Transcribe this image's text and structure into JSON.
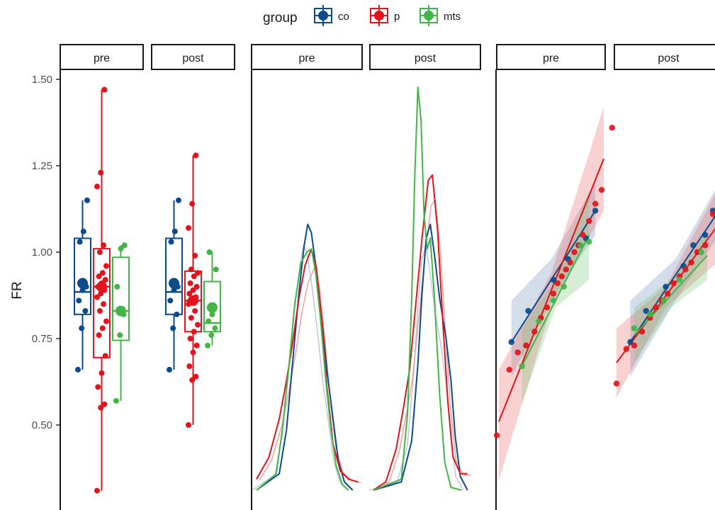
{
  "legend": {
    "title": "group",
    "items": [
      {
        "label": "co",
        "color": "#0b4a8b"
      },
      {
        "label": "p",
        "color": "#e3121b"
      },
      {
        "label": "mts",
        "color": "#43b447"
      }
    ]
  },
  "y_axis": {
    "title": "FR",
    "ticks": [
      "1.50",
      "1.25",
      "1.00",
      "0.75",
      "0.50"
    ]
  },
  "strips": {
    "panel1": [
      "pre",
      "post"
    ],
    "panel2": [
      "pre",
      "post"
    ],
    "panel3": [
      "pre",
      "post"
    ]
  },
  "chart_data": [
    {
      "type": "box",
      "ylabel": "FR",
      "ylim": [
        0.28,
        1.52
      ],
      "facets": [
        "pre",
        "post"
      ],
      "series": [
        {
          "name": "co",
          "color": "#0b4a8b",
          "pre": {
            "min": 0.66,
            "q1": 0.82,
            "median": 0.885,
            "q3": 1.04,
            "max": 1.15,
            "mean": 0.91,
            "points": [
              0.66,
              0.78,
              0.83,
              0.86,
              0.89,
              0.9,
              1.03,
              1.06,
              1.15
            ]
          },
          "post": {
            "min": 0.66,
            "q1": 0.82,
            "median": 0.885,
            "q3": 1.04,
            "max": 1.15,
            "mean": 0.91,
            "points": [
              0.66,
              0.78,
              0.82,
              0.86,
              0.89,
              0.9,
              1.03,
              1.06,
              1.15
            ]
          }
        },
        {
          "name": "p",
          "color": "#e3121b",
          "pre": {
            "min": 0.31,
            "q1": 0.695,
            "median": 0.9,
            "q3": 1.01,
            "max": 1.47,
            "mean": 0.9,
            "points": [
              0.31,
              0.55,
              0.56,
              0.61,
              0.65,
              0.7,
              0.76,
              0.78,
              0.8,
              0.83,
              0.85,
              0.87,
              0.88,
              0.89,
              0.9,
              0.91,
              0.92,
              0.93,
              0.94,
              0.96,
              1.0,
              1.02,
              1.19,
              1.23,
              1.47
            ]
          },
          "post": {
            "min": 0.5,
            "q1": 0.77,
            "median": 0.86,
            "q3": 0.945,
            "max": 1.28,
            "mean": 0.86,
            "points": [
              0.5,
              0.63,
              0.64,
              0.67,
              0.71,
              0.73,
              0.75,
              0.77,
              0.79,
              0.81,
              0.83,
              0.85,
              0.86,
              0.87,
              0.88,
              0.89,
              0.9,
              0.91,
              0.93,
              0.94,
              0.95,
              0.99,
              1.07,
              1.14,
              1.28
            ]
          }
        },
        {
          "name": "mts",
          "color": "#43b447",
          "pre": {
            "min": 0.57,
            "q1": 0.745,
            "median": 0.83,
            "q3": 0.985,
            "max": 1.02,
            "mean": 0.83,
            "points": [
              0.57,
              0.76,
              0.82,
              0.9,
              1.01,
              1.02
            ]
          },
          "post": {
            "min": 0.73,
            "q1": 0.77,
            "median": 0.795,
            "q3": 0.915,
            "max": 1.0,
            "mean": 0.84,
            "points": [
              0.73,
              0.76,
              0.78,
              0.8,
              0.82,
              0.95,
              1.0
            ]
          }
        }
      ]
    },
    {
      "type": "density",
      "facets": [
        "pre",
        "post"
      ],
      "series": [
        {
          "name": "co",
          "color": "#0b4a8b",
          "pre": [
            [
              0.33,
              0.0
            ],
            [
              0.55,
              0.06
            ],
            [
              0.62,
              0.22
            ],
            [
              0.68,
              0.47
            ],
            [
              0.74,
              0.72
            ],
            [
              0.79,
              0.89
            ],
            [
              0.825,
              0.97
            ],
            [
              0.86,
              0.94
            ],
            [
              0.91,
              0.8
            ],
            [
              0.96,
              0.63
            ],
            [
              1.01,
              0.44
            ],
            [
              1.07,
              0.26
            ],
            [
              1.12,
              0.11
            ],
            [
              1.18,
              0.03
            ],
            [
              1.26,
              0.0
            ]
          ],
          "post": [
            [
              0.33,
              0.0
            ],
            [
              0.6,
              0.03
            ],
            [
              0.7,
              0.18
            ],
            [
              0.76,
              0.46
            ],
            [
              0.8,
              0.72
            ],
            [
              0.84,
              0.92
            ],
            [
              0.88,
              0.97
            ],
            [
              0.92,
              0.86
            ],
            [
              0.97,
              0.7
            ],
            [
              1.03,
              0.56
            ],
            [
              1.08,
              0.4
            ],
            [
              1.12,
              0.2
            ],
            [
              1.17,
              0.05
            ],
            [
              1.24,
              0.0
            ]
          ]
        },
        {
          "name": "p",
          "color": "#e3121b",
          "pre": [
            [
              0.33,
              0.04
            ],
            [
              0.45,
              0.12
            ],
            [
              0.55,
              0.26
            ],
            [
              0.62,
              0.4
            ],
            [
              0.68,
              0.54
            ],
            [
              0.74,
              0.7
            ],
            [
              0.8,
              0.82
            ],
            [
              0.86,
              0.88
            ],
            [
              0.91,
              0.81
            ],
            [
              0.96,
              0.62
            ],
            [
              1.01,
              0.38
            ],
            [
              1.07,
              0.17
            ],
            [
              1.14,
              0.07
            ],
            [
              1.22,
              0.04
            ],
            [
              1.31,
              0.03
            ]
          ],
          "post": [
            [
              0.33,
              0.0
            ],
            [
              0.45,
              0.03
            ],
            [
              0.55,
              0.15
            ],
            [
              0.62,
              0.3
            ],
            [
              0.68,
              0.44
            ],
            [
              0.74,
              0.68
            ],
            [
              0.8,
              0.92
            ],
            [
              0.86,
              1.13
            ],
            [
              0.9,
              1.15
            ],
            [
              0.95,
              0.95
            ],
            [
              1.0,
              0.62
            ],
            [
              1.05,
              0.32
            ],
            [
              1.1,
              0.12
            ],
            [
              1.17,
              0.06
            ],
            [
              1.24,
              0.06
            ]
          ]
        },
        {
          "name": "mts",
          "color": "#43b447",
          "pre": [
            [
              0.33,
              0.0
            ],
            [
              0.52,
              0.06
            ],
            [
              0.58,
              0.22
            ],
            [
              0.64,
              0.44
            ],
            [
              0.7,
              0.68
            ],
            [
              0.76,
              0.83
            ],
            [
              0.82,
              0.87
            ],
            [
              0.86,
              0.88
            ],
            [
              0.9,
              0.8
            ],
            [
              0.95,
              0.62
            ],
            [
              1.0,
              0.4
            ],
            [
              1.05,
              0.22
            ],
            [
              1.1,
              0.09
            ],
            [
              1.16,
              0.02
            ],
            [
              1.22,
              0.0
            ]
          ],
          "post": [
            [
              0.33,
              0.0
            ],
            [
              0.6,
              0.04
            ],
            [
              0.66,
              0.28
            ],
            [
              0.7,
              0.7
            ],
            [
              0.73,
              1.15
            ],
            [
              0.76,
              1.47
            ],
            [
              0.79,
              1.35
            ],
            [
              0.82,
              1.0
            ],
            [
              0.85,
              0.88
            ],
            [
              0.88,
              0.92
            ],
            [
              0.92,
              0.7
            ],
            [
              0.97,
              0.35
            ],
            [
              1.02,
              0.1
            ],
            [
              1.08,
              0.01
            ],
            [
              1.18,
              0.0
            ]
          ]
        }
      ]
    },
    {
      "type": "scatter",
      "facets": [
        "pre",
        "post"
      ],
      "series": [
        {
          "name": "co",
          "color": "#0b4a8b",
          "pre": {
            "points": [
              [
                0.12,
                0.74
              ],
              [
                0.28,
                0.83
              ],
              [
                0.52,
                0.92
              ],
              [
                0.66,
                0.98
              ],
              [
                0.76,
                1.02
              ],
              [
                0.83,
                1.04
              ],
              [
                0.92,
                1.12
              ]
            ],
            "fit": [
              [
                0.12,
                0.74
              ],
              [
                0.92,
                1.12
              ]
            ],
            "band": [
              [
                0.12,
                0.64,
                0.86
              ],
              [
                0.5,
                0.86,
                0.98
              ],
              [
                0.92,
                1.05,
                1.2
              ]
            ]
          },
          "post": {
            "points": [
              [
                0.14,
                0.74
              ],
              [
                0.3,
                0.83
              ],
              [
                0.5,
                0.9
              ],
              [
                0.68,
                0.96
              ],
              [
                0.78,
                1.02
              ],
              [
                0.9,
                1.05
              ],
              [
                1.04,
                1.12
              ]
            ],
            "fit": [
              [
                0.14,
                0.74
              ],
              [
                1.04,
                1.12
              ]
            ],
            "band": [
              [
                0.14,
                0.64,
                0.86
              ],
              [
                0.6,
                0.86,
                0.98
              ],
              [
                1.04,
                1.05,
                1.2
              ]
            ]
          }
        },
        {
          "name": "p",
          "color": "#e3121b",
          "pre": {
            "points": [
              [
                -0.02,
                0.47
              ],
              [
                0.1,
                0.66
              ],
              [
                0.18,
                0.71
              ],
              [
                0.26,
                0.73
              ],
              [
                0.34,
                0.77
              ],
              [
                0.4,
                0.81
              ],
              [
                0.46,
                0.84
              ],
              [
                0.52,
                0.88
              ],
              [
                0.56,
                0.91
              ],
              [
                0.6,
                0.93
              ],
              [
                0.64,
                0.95
              ],
              [
                0.68,
                0.97
              ],
              [
                0.72,
                1.0
              ],
              [
                0.76,
                1.02
              ],
              [
                0.8,
                1.05
              ],
              [
                0.86,
                1.09
              ],
              [
                0.92,
                1.14
              ],
              [
                0.98,
                1.18
              ],
              [
                1.08,
                1.36
              ]
            ],
            "fit": [
              [
                0.0,
                0.51
              ],
              [
                1.0,
                1.27
              ]
            ],
            "band": [
              [
                0.0,
                0.34,
                0.66
              ],
              [
                0.5,
                0.84,
                0.94
              ],
              [
                1.0,
                1.12,
                1.42
              ]
            ]
          },
          "post": {
            "points": [
              [
                0.0,
                0.62
              ],
              [
                0.1,
                0.72
              ],
              [
                0.18,
                0.73
              ],
              [
                0.26,
                0.77
              ],
              [
                0.34,
                0.81
              ],
              [
                0.4,
                0.84
              ],
              [
                0.46,
                0.86
              ],
              [
                0.52,
                0.88
              ],
              [
                0.58,
                0.91
              ],
              [
                0.64,
                0.93
              ],
              [
                0.7,
                0.95
              ],
              [
                0.76,
                0.97
              ],
              [
                0.82,
                1.0
              ],
              [
                0.9,
                1.02
              ],
              [
                1.02,
                1.11
              ]
            ],
            "fit": [
              [
                0.0,
                0.68
              ],
              [
                1.06,
                1.09
              ]
            ],
            "band": [
              [
                0.0,
                0.58,
                0.78
              ],
              [
                0.5,
                0.84,
                0.9
              ],
              [
                1.06,
                0.98,
                1.2
              ]
            ]
          }
        },
        {
          "name": "mts",
          "color": "#43b447",
          "pre": {
            "points": [
              [
                0.22,
                0.67
              ],
              [
                0.38,
                0.8
              ],
              [
                0.52,
                0.86
              ],
              [
                0.62,
                0.9
              ],
              [
                0.78,
                1.02
              ],
              [
                0.86,
                1.03
              ]
            ],
            "fit": [
              [
                0.22,
                0.67
              ],
              [
                0.86,
                1.05
              ]
            ],
            "band": [
              [
                0.22,
                0.56,
                0.78
              ],
              [
                0.54,
                0.84,
                0.92
              ],
              [
                0.86,
                0.92,
                1.18
              ]
            ]
          },
          "post": {
            "points": [
              [
                0.18,
                0.78
              ],
              [
                0.34,
                0.82
              ],
              [
                0.48,
                0.86
              ],
              [
                0.64,
                0.92
              ],
              [
                0.86,
                1.0
              ]
            ],
            "fit": [
              [
                0.18,
                0.76
              ],
              [
                0.92,
                0.99
              ]
            ],
            "band": [
              [
                0.18,
                0.68,
                0.84
              ],
              [
                0.55,
                0.84,
                0.92
              ],
              [
                0.92,
                0.92,
                1.06
              ]
            ]
          }
        }
      ]
    }
  ]
}
